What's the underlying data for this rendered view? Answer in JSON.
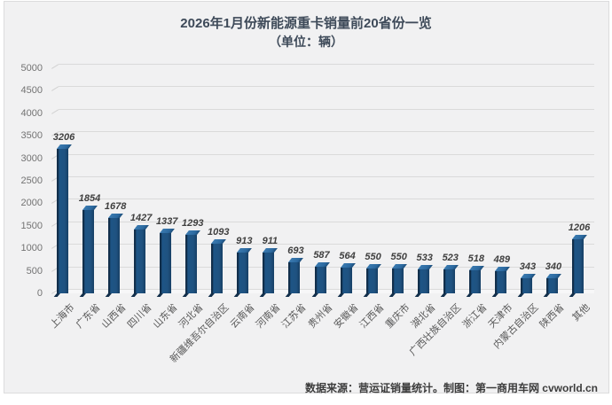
{
  "title": {
    "line1": "2026年1月份新能源重卡销量前20省份一览",
    "line2": "（单位：辆）"
  },
  "footer": {
    "source_note": "数据来源：营运证销量统计。制图：第一商用车网 cvworld.cn"
  },
  "colors": {
    "panel_background": "#f1f1f2",
    "bar_front": "#1f5280",
    "bar_side_dark": "#122f4b",
    "bar_top": "#2c699f",
    "gridline": "#dadada",
    "title_text": "#3e4a59",
    "axis_text": "#737373",
    "category_text": "#595959",
    "value_label_text": "#3f3f3f"
  },
  "chart_data": {
    "type": "bar",
    "style": "3d-column",
    "title": "2026年1月份新能源重卡销量前20省份一览",
    "subtitle": "（单位：辆）",
    "categories": [
      "上海市",
      "广东省",
      "山西省",
      "四川省",
      "山东省",
      "河北省",
      "新疆维吾尔自治区",
      "云南省",
      "河南省",
      "江苏省",
      "贵州省",
      "安徽省",
      "江西省",
      "重庆市",
      "湖北省",
      "广西壮族自治区",
      "浙江省",
      "天津市",
      "内蒙古自治区",
      "陕西省",
      "其他"
    ],
    "values": [
      3206,
      1854,
      1678,
      1427,
      1337,
      1293,
      1093,
      913,
      911,
      693,
      587,
      564,
      550,
      550,
      533,
      523,
      518,
      489,
      343,
      340,
      1206
    ],
    "ylabel": "",
    "xlabel": "",
    "ylim": [
      0,
      5000
    ],
    "yticks": [
      0,
      500,
      1000,
      1500,
      2000,
      2500,
      3000,
      3500,
      4000,
      4500,
      5000
    ],
    "grid": true,
    "legend_position": "none",
    "value_labels": true,
    "x_label_rotation": 45
  }
}
